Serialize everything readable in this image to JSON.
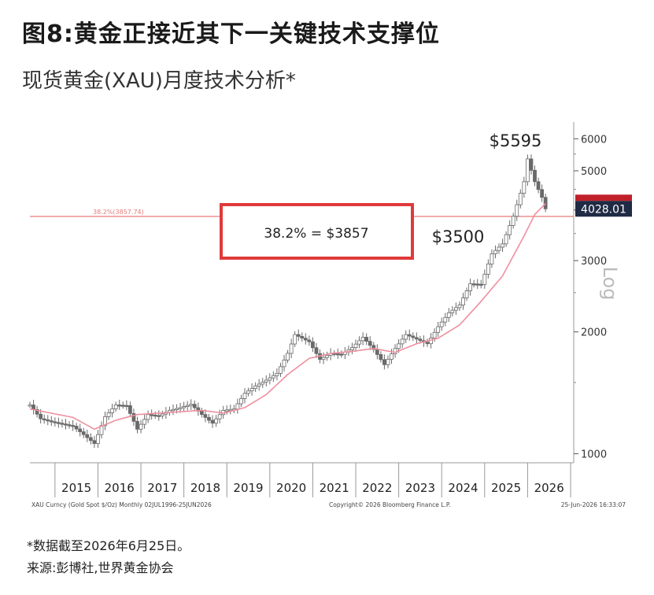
{
  "header": {
    "title": "图8:黄金正接近其下一关键技术支撑位",
    "subtitle": "现货黄金(XAU)月度技术分析*"
  },
  "footer": {
    "note": "*数据截至2026年6月25日。",
    "source": "来源:彭博社,世界黄金协会"
  },
  "chart_data": {
    "type": "candlestick",
    "title": "",
    "scale": "log",
    "ylim": [
      950,
      6600
    ],
    "y_ticks": [
      1000,
      2000,
      3000,
      4000,
      5000,
      6000
    ],
    "y_tick_labels": [
      "1000",
      "2000",
      "3000",
      "",
      "5000",
      "6000"
    ],
    "y_axis_label": "Log",
    "x_range": [
      "2014-06",
      "2027-01"
    ],
    "x_labels": [
      "2015",
      "2016",
      "2017",
      "2018",
      "2019",
      "2020",
      "2021",
      "2022",
      "2023",
      "2024",
      "2025",
      "2026"
    ],
    "grid": false,
    "fib_line": {
      "value": 3857,
      "label": "38.2%(3857.74)",
      "color": "#e87a7a"
    },
    "callout": {
      "text": "38.2% = $3857",
      "border_color": "#e03a3a"
    },
    "annotations": [
      {
        "text": "$5595",
        "x": "2026-01",
        "y": 5595
      },
      {
        "text": "$3500",
        "x": "2025-04",
        "y": 3500
      }
    ],
    "last_price": {
      "value": 4028.01,
      "label": "4028.01"
    },
    "series": [
      {
        "kind": "monthly_close",
        "color": "#555555",
        "points": [
          [
            "2014-06",
            1320
          ],
          [
            "2014-09",
            1220
          ],
          [
            "2014-12",
            1200
          ],
          [
            "2015-03",
            1185
          ],
          [
            "2015-06",
            1170
          ],
          [
            "2015-09",
            1115
          ],
          [
            "2015-12",
            1060
          ],
          [
            "2016-03",
            1235
          ],
          [
            "2016-06",
            1320
          ],
          [
            "2016-09",
            1315
          ],
          [
            "2016-12",
            1150
          ],
          [
            "2017-03",
            1250
          ],
          [
            "2017-06",
            1240
          ],
          [
            "2017-09",
            1280
          ],
          [
            "2017-12",
            1300
          ],
          [
            "2018-03",
            1325
          ],
          [
            "2018-06",
            1250
          ],
          [
            "2018-09",
            1190
          ],
          [
            "2018-12",
            1280
          ],
          [
            "2019-03",
            1290
          ],
          [
            "2019-06",
            1410
          ],
          [
            "2019-09",
            1470
          ],
          [
            "2019-12",
            1520
          ],
          [
            "2020-03",
            1580
          ],
          [
            "2020-06",
            1770
          ],
          [
            "2020-08",
            1970
          ],
          [
            "2020-12",
            1890
          ],
          [
            "2021-03",
            1710
          ],
          [
            "2021-06",
            1770
          ],
          [
            "2021-09",
            1760
          ],
          [
            "2021-12",
            1830
          ],
          [
            "2022-03",
            1940
          ],
          [
            "2022-06",
            1810
          ],
          [
            "2022-09",
            1660
          ],
          [
            "2022-12",
            1820
          ],
          [
            "2023-03",
            1970
          ],
          [
            "2023-06",
            1920
          ],
          [
            "2023-09",
            1870
          ],
          [
            "2023-12",
            2060
          ],
          [
            "2024-03",
            2230
          ],
          [
            "2024-06",
            2330
          ],
          [
            "2024-09",
            2630
          ],
          [
            "2024-12",
            2620
          ],
          [
            "2025-03",
            3120
          ],
          [
            "2025-06",
            3300
          ],
          [
            "2025-09",
            3860
          ],
          [
            "2025-12",
            4700
          ],
          [
            "2026-01",
            5350
          ],
          [
            "2026-03",
            4700
          ],
          [
            "2026-05",
            4300
          ],
          [
            "2026-06",
            4028
          ]
        ]
      },
      {
        "kind": "moving_average",
        "color": "#ef8f9f",
        "points": [
          [
            "2014-06",
            1290
          ],
          [
            "2015-06",
            1230
          ],
          [
            "2015-12",
            1150
          ],
          [
            "2016-06",
            1210
          ],
          [
            "2016-12",
            1250
          ],
          [
            "2017-06",
            1260
          ],
          [
            "2017-12",
            1270
          ],
          [
            "2018-06",
            1280
          ],
          [
            "2018-12",
            1260
          ],
          [
            "2019-06",
            1300
          ],
          [
            "2019-12",
            1400
          ],
          [
            "2020-06",
            1570
          ],
          [
            "2020-12",
            1720
          ],
          [
            "2021-06",
            1770
          ],
          [
            "2021-12",
            1790
          ],
          [
            "2022-06",
            1820
          ],
          [
            "2022-12",
            1780
          ],
          [
            "2023-06",
            1870
          ],
          [
            "2023-12",
            1930
          ],
          [
            "2024-06",
            2080
          ],
          [
            "2024-12",
            2380
          ],
          [
            "2025-06",
            2750
          ],
          [
            "2025-12",
            3450
          ],
          [
            "2026-03",
            3900
          ],
          [
            "2026-06",
            4150
          ]
        ]
      }
    ],
    "footer_labels": {
      "left": "XAU Curncy (Gold Spot $/Oz) Monthly 02JUL1996-25JUN2026",
      "center": "Copyright© 2026 Bloomberg Finance L.P.",
      "right": "25-Jun-2026 16:33:07"
    }
  }
}
